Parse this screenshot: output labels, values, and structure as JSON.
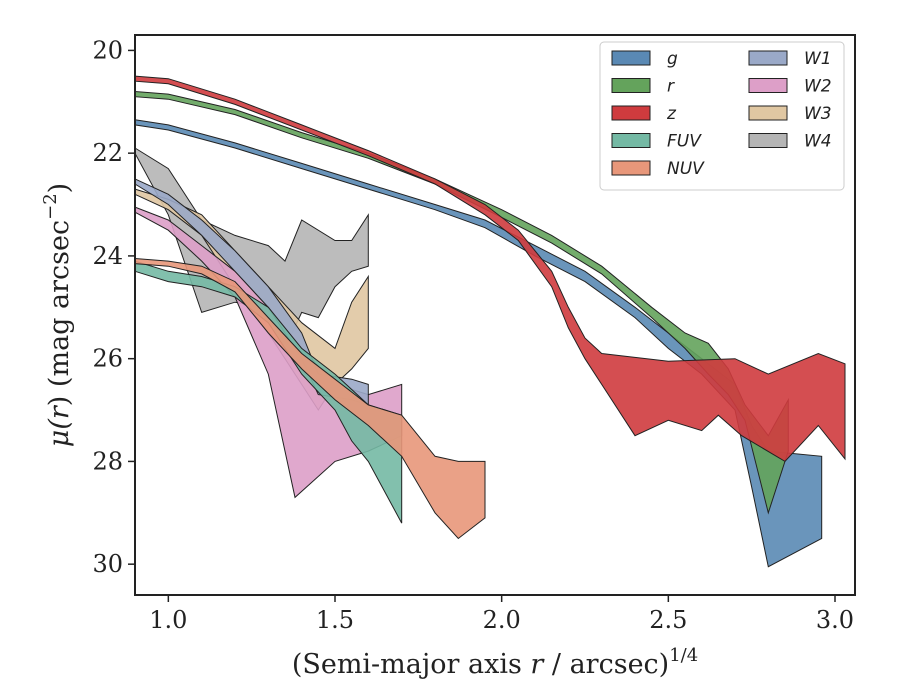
{
  "chart_data": {
    "type": "area",
    "xlabel": "(Semi-major axis r / arcsec)",
    "xlabel_parts": {
      "prefix": "(Semi-major axis ",
      "var": "r",
      "suffix": " / arcsec)",
      "exponent": "1/4"
    },
    "ylabel": "μ(r) (mag arcsec⁻²)",
    "ylabel_parts": {
      "mu": "μ(",
      "var": "r",
      "mid": ") (mag arcsec",
      "exponent": "−2",
      "close": ")"
    },
    "xlim": [
      0.9,
      3.06
    ],
    "ylim": [
      30.6,
      19.7
    ],
    "y_inverted": true,
    "x_ticks": [
      "1.0",
      "1.5",
      "2.0",
      "2.5",
      "3.0"
    ],
    "y_ticks": [
      "20",
      "22",
      "24",
      "26",
      "28",
      "30"
    ],
    "grid": false,
    "legend": {
      "placement": "top-right",
      "columns": 2
    },
    "series": [
      {
        "name": "g",
        "color": "#5a89b4",
        "upper": [
          [
            0.9,
            21.35
          ],
          [
            1.0,
            21.45
          ],
          [
            1.2,
            21.8
          ],
          [
            1.4,
            22.2
          ],
          [
            1.6,
            22.6
          ],
          [
            1.8,
            23.0
          ],
          [
            1.95,
            23.3
          ],
          [
            2.1,
            23.8
          ],
          [
            2.25,
            24.3
          ],
          [
            2.4,
            25.0
          ],
          [
            2.5,
            25.5
          ],
          [
            2.6,
            26.0
          ],
          [
            2.7,
            26.5
          ],
          [
            2.75,
            27.3
          ],
          [
            2.8,
            27.8
          ],
          [
            2.96,
            27.9
          ]
        ],
        "lower": [
          [
            0.9,
            21.45
          ],
          [
            1.0,
            21.55
          ],
          [
            1.2,
            21.9
          ],
          [
            1.4,
            22.3
          ],
          [
            1.6,
            22.7
          ],
          [
            1.8,
            23.1
          ],
          [
            1.95,
            23.45
          ],
          [
            2.1,
            24.0
          ],
          [
            2.25,
            24.5
          ],
          [
            2.4,
            25.2
          ],
          [
            2.5,
            25.8
          ],
          [
            2.6,
            26.3
          ],
          [
            2.7,
            27.0
          ],
          [
            2.75,
            28.5
          ],
          [
            2.8,
            30.05
          ],
          [
            2.96,
            29.5
          ]
        ]
      },
      {
        "name": "r",
        "color": "#64a35c",
        "upper": [
          [
            0.9,
            20.8
          ],
          [
            1.0,
            20.85
          ],
          [
            1.2,
            21.15
          ],
          [
            1.4,
            21.6
          ],
          [
            1.6,
            22.0
          ],
          [
            1.8,
            22.5
          ],
          [
            2.0,
            23.1
          ],
          [
            2.15,
            23.6
          ],
          [
            2.3,
            24.2
          ],
          [
            2.45,
            25.0
          ],
          [
            2.55,
            25.5
          ],
          [
            2.62,
            25.7
          ],
          [
            2.68,
            26.2
          ],
          [
            2.73,
            26.9
          ],
          [
            2.8,
            27.5
          ],
          [
            2.86,
            26.8
          ]
        ],
        "lower": [
          [
            0.9,
            20.9
          ],
          [
            1.0,
            20.95
          ],
          [
            1.2,
            21.25
          ],
          [
            1.4,
            21.7
          ],
          [
            1.6,
            22.1
          ],
          [
            1.8,
            22.6
          ],
          [
            2.0,
            23.25
          ],
          [
            2.15,
            23.75
          ],
          [
            2.3,
            24.35
          ],
          [
            2.45,
            25.2
          ],
          [
            2.55,
            25.8
          ],
          [
            2.62,
            26.3
          ],
          [
            2.68,
            26.7
          ],
          [
            2.73,
            27.2
          ],
          [
            2.8,
            29.0
          ],
          [
            2.86,
            27.8
          ]
        ]
      },
      {
        "name": "z",
        "color": "#cf3b3e",
        "upper": [
          [
            0.9,
            20.5
          ],
          [
            1.0,
            20.55
          ],
          [
            1.2,
            20.95
          ],
          [
            1.4,
            21.45
          ],
          [
            1.6,
            21.95
          ],
          [
            1.8,
            22.5
          ],
          [
            1.95,
            23.0
          ],
          [
            2.05,
            23.5
          ],
          [
            2.15,
            24.3
          ],
          [
            2.2,
            25.0
          ],
          [
            2.25,
            25.6
          ],
          [
            2.3,
            25.9
          ],
          [
            2.5,
            26.05
          ],
          [
            2.7,
            26.0
          ],
          [
            2.8,
            26.3
          ],
          [
            2.95,
            25.9
          ],
          [
            3.03,
            26.1
          ]
        ],
        "lower": [
          [
            0.9,
            20.6
          ],
          [
            1.0,
            20.65
          ],
          [
            1.2,
            21.05
          ],
          [
            1.4,
            21.55
          ],
          [
            1.6,
            22.05
          ],
          [
            1.8,
            22.6
          ],
          [
            1.95,
            23.2
          ],
          [
            2.05,
            23.7
          ],
          [
            2.15,
            24.6
          ],
          [
            2.2,
            25.4
          ],
          [
            2.25,
            26.0
          ],
          [
            2.3,
            26.5
          ],
          [
            2.4,
            27.5
          ],
          [
            2.5,
            27.2
          ],
          [
            2.6,
            27.4
          ],
          [
            2.65,
            27.1
          ],
          [
            2.72,
            27.5
          ],
          [
            2.85,
            28.0
          ],
          [
            2.95,
            27.3
          ],
          [
            3.03,
            27.95
          ]
        ]
      },
      {
        "name": "FUV",
        "color": "#74b9a4",
        "upper": [
          [
            0.9,
            24.1
          ],
          [
            1.0,
            24.3
          ],
          [
            1.1,
            24.4
          ],
          [
            1.2,
            24.6
          ],
          [
            1.3,
            25.0
          ],
          [
            1.4,
            25.8
          ],
          [
            1.5,
            26.3
          ],
          [
            1.55,
            26.6
          ],
          [
            1.6,
            26.9
          ],
          [
            1.7,
            27.1
          ]
        ],
        "lower": [
          [
            0.9,
            24.3
          ],
          [
            1.0,
            24.5
          ],
          [
            1.1,
            24.6
          ],
          [
            1.2,
            24.8
          ],
          [
            1.3,
            25.3
          ],
          [
            1.4,
            26.3
          ],
          [
            1.5,
            27.0
          ],
          [
            1.55,
            27.6
          ],
          [
            1.6,
            28.0
          ],
          [
            1.7,
            29.2
          ]
        ]
      },
      {
        "name": "NUV",
        "color": "#e8977a",
        "upper": [
          [
            0.9,
            24.05
          ],
          [
            1.0,
            24.1
          ],
          [
            1.1,
            24.2
          ],
          [
            1.2,
            24.5
          ],
          [
            1.3,
            25.2
          ],
          [
            1.4,
            25.9
          ],
          [
            1.5,
            26.4
          ],
          [
            1.6,
            26.9
          ],
          [
            1.7,
            27.1
          ],
          [
            1.8,
            27.9
          ],
          [
            1.87,
            28.0
          ],
          [
            1.95,
            28.0
          ]
        ],
        "lower": [
          [
            0.9,
            24.15
          ],
          [
            1.0,
            24.2
          ],
          [
            1.1,
            24.35
          ],
          [
            1.2,
            24.7
          ],
          [
            1.3,
            25.5
          ],
          [
            1.4,
            26.2
          ],
          [
            1.5,
            26.8
          ],
          [
            1.6,
            27.3
          ],
          [
            1.7,
            27.9
          ],
          [
            1.8,
            29.0
          ],
          [
            1.87,
            29.5
          ],
          [
            1.95,
            29.1
          ]
        ]
      },
      {
        "name": "W1",
        "color": "#9aa9c8",
        "upper": [
          [
            0.9,
            22.5
          ],
          [
            1.0,
            22.8
          ],
          [
            1.1,
            23.3
          ],
          [
            1.2,
            23.9
          ],
          [
            1.3,
            24.6
          ],
          [
            1.4,
            25.5
          ],
          [
            1.45,
            26.3
          ],
          [
            1.55,
            26.4
          ],
          [
            1.6,
            26.5
          ]
        ],
        "lower": [
          [
            0.9,
            22.6
          ],
          [
            1.0,
            23.0
          ],
          [
            1.1,
            23.6
          ],
          [
            1.2,
            24.3
          ],
          [
            1.3,
            25.0
          ],
          [
            1.4,
            26.0
          ],
          [
            1.45,
            26.7
          ],
          [
            1.55,
            26.8
          ],
          [
            1.6,
            26.9
          ]
        ]
      },
      {
        "name": "W2",
        "color": "#dd9fc8",
        "upper": [
          [
            0.9,
            23.05
          ],
          [
            1.0,
            23.3
          ],
          [
            1.1,
            23.8
          ],
          [
            1.2,
            24.3
          ],
          [
            1.3,
            25.0
          ],
          [
            1.4,
            25.8
          ],
          [
            1.5,
            26.5
          ],
          [
            1.6,
            26.7
          ],
          [
            1.7,
            26.5
          ]
        ],
        "lower": [
          [
            0.9,
            23.15
          ],
          [
            1.0,
            23.5
          ],
          [
            1.1,
            24.1
          ],
          [
            1.2,
            24.8
          ],
          [
            1.3,
            26.3
          ],
          [
            1.38,
            28.7
          ],
          [
            1.5,
            28.0
          ],
          [
            1.6,
            27.8
          ],
          [
            1.7,
            27.5
          ]
        ]
      },
      {
        "name": "W3",
        "color": "#e0c7a2",
        "upper": [
          [
            0.9,
            22.7
          ],
          [
            1.0,
            22.9
          ],
          [
            1.1,
            23.2
          ],
          [
            1.2,
            23.9
          ],
          [
            1.3,
            24.6
          ],
          [
            1.4,
            25.3
          ],
          [
            1.5,
            25.8
          ],
          [
            1.55,
            24.9
          ],
          [
            1.6,
            24.4
          ]
        ],
        "lower": [
          [
            0.9,
            22.8
          ],
          [
            1.0,
            23.1
          ],
          [
            1.1,
            23.6
          ],
          [
            1.2,
            24.6
          ],
          [
            1.3,
            25.5
          ],
          [
            1.4,
            26.5
          ],
          [
            1.45,
            27.0
          ],
          [
            1.5,
            26.5
          ],
          [
            1.55,
            26.2
          ],
          [
            1.6,
            25.8
          ]
        ]
      },
      {
        "name": "W4",
        "color": "#b5b5b5",
        "upper": [
          [
            0.9,
            21.9
          ],
          [
            1.0,
            22.3
          ],
          [
            1.1,
            23.3
          ],
          [
            1.2,
            23.6
          ],
          [
            1.3,
            23.8
          ],
          [
            1.35,
            24.1
          ],
          [
            1.4,
            23.3
          ],
          [
            1.5,
            23.7
          ],
          [
            1.55,
            23.7
          ],
          [
            1.6,
            23.2
          ]
        ],
        "lower": [
          [
            0.9,
            22.0
          ],
          [
            1.0,
            23.2
          ],
          [
            1.1,
            25.1
          ],
          [
            1.2,
            24.9
          ],
          [
            1.3,
            25.0
          ],
          [
            1.35,
            25.8
          ],
          [
            1.4,
            25.1
          ],
          [
            1.45,
            25.2
          ],
          [
            1.5,
            24.6
          ],
          [
            1.55,
            24.3
          ],
          [
            1.6,
            24.2
          ]
        ]
      }
    ]
  }
}
